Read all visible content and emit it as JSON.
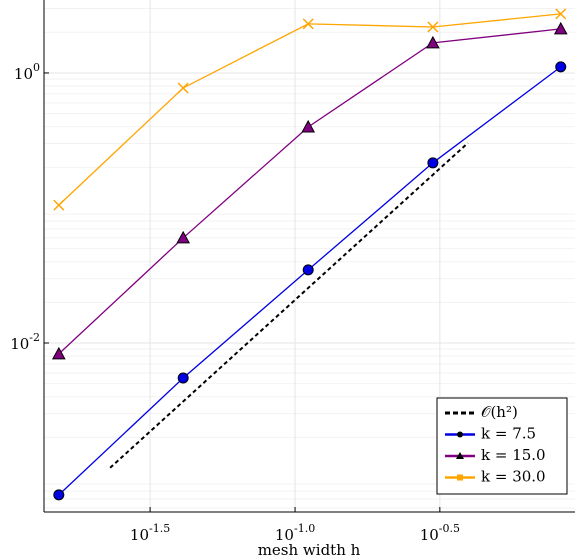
{
  "chart_data": {
    "type": "line",
    "xscale": "log",
    "yscale": "log",
    "grid": true,
    "legend": "lower right",
    "xlabel": "mesh width h",
    "xlim": [
      0.0136,
      0.925
    ],
    "ylim": [
      0.00056,
      3.47
    ],
    "xticks": [
      {
        "value": 0.0316,
        "label": "10^-1.5"
      },
      {
        "value": 0.1,
        "label": "10^-1.0"
      },
      {
        "value": 0.316,
        "label": "10^-0.5"
      }
    ],
    "yticks": [
      {
        "value": 0.01,
        "label": "10^-2"
      },
      {
        "value": 1,
        "label": "10^0"
      }
    ],
    "series": [
      {
        "name": "𝒪(h²)",
        "color": "#000000",
        "style": "dashed",
        "marker": "none",
        "x": [
          0.023,
          0.395
        ],
        "values": [
          0.00119,
          0.303
        ]
      },
      {
        "name": "k = 7.5",
        "color": "#0000e6",
        "style": "solid",
        "marker": "circle",
        "x": [
          0.0153,
          0.0411,
          0.111,
          0.299,
          0.826
        ],
        "values": [
          0.00075,
          0.0055,
          0.0348,
          0.216,
          1.11
        ]
      },
      {
        "name": "k = 15.0",
        "color": "#800080",
        "style": "solid",
        "marker": "triangle",
        "x": [
          0.0153,
          0.0411,
          0.111,
          0.299,
          0.826
        ],
        "values": [
          0.0083,
          0.06,
          0.398,
          1.67,
          2.12
        ]
      },
      {
        "name": "k = 30.0",
        "color": "#ffa500",
        "style": "solid",
        "marker": "x",
        "x": [
          0.0153,
          0.0411,
          0.111,
          0.299,
          0.826
        ],
        "values": [
          0.105,
          0.774,
          2.31,
          2.19,
          2.74
        ]
      }
    ]
  }
}
